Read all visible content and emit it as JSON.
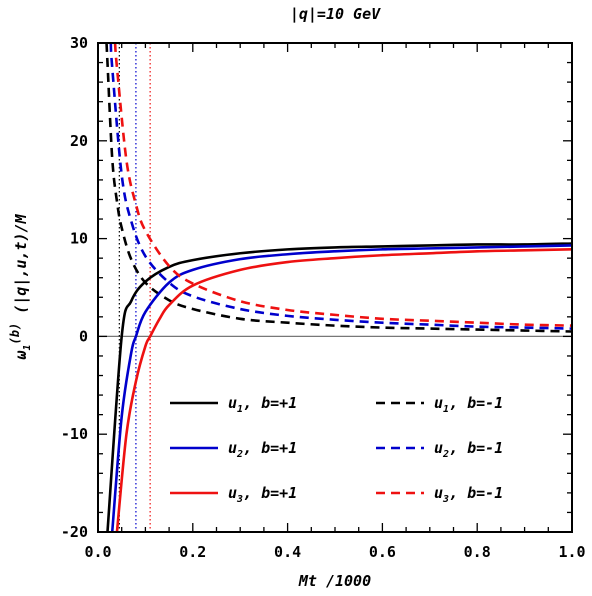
{
  "chart_data": {
    "type": "line",
    "title": "|q|=10 GeV",
    "xlabel": "Mt /1000",
    "ylabel": "ω1(b) (|q|,u,t)/M",
    "xlim": [
      0.0,
      1.0
    ],
    "ylim": [
      -20,
      30
    ],
    "x_ticks": [
      "0.0",
      "0.2",
      "0.4",
      "0.6",
      "0.8",
      "1.0"
    ],
    "y_ticks": [
      "-20",
      "-10",
      "0",
      "10",
      "20",
      "30"
    ],
    "grid": false,
    "legend_position": "lower-right",
    "zero_line": 0,
    "asymptotes": [
      {
        "x": 0.045,
        "color": "#000000"
      },
      {
        "x": 0.08,
        "color": "#0000cc"
      },
      {
        "x": 0.11,
        "color": "#ee1111"
      }
    ],
    "series": [
      {
        "name": "u1, b=+1",
        "color": "#000000",
        "dash": "solid",
        "x": [
          0.02,
          0.05,
          0.07,
          0.1,
          0.15,
          0.2,
          0.3,
          0.4,
          0.5,
          0.6,
          0.7,
          0.8,
          0.9,
          1.0
        ],
        "y": [
          -20.0,
          0.0,
          3.6,
          5.6,
          7.1,
          7.8,
          8.5,
          8.9,
          9.1,
          9.2,
          9.3,
          9.4,
          9.4,
          9.5
        ]
      },
      {
        "name": "u1, b=-1",
        "color": "#000000",
        "dash": "dashed",
        "x": [
          0.018,
          0.02,
          0.03,
          0.04,
          0.05,
          0.07,
          0.1,
          0.15,
          0.2,
          0.3,
          0.4,
          0.5,
          0.6,
          0.7,
          0.8,
          0.9,
          1.0
        ],
        "y": [
          30.0,
          28.0,
          18.2,
          13.8,
          11.1,
          7.9,
          5.5,
          3.7,
          2.8,
          1.8,
          1.4,
          1.1,
          0.9,
          0.8,
          0.7,
          0.6,
          0.5
        ]
      },
      {
        "name": "u2, b=+1",
        "color": "#0000cc",
        "dash": "solid",
        "x": [
          0.03,
          0.05,
          0.07,
          0.08,
          0.1,
          0.15,
          0.2,
          0.3,
          0.4,
          0.5,
          0.6,
          0.7,
          0.8,
          0.9,
          1.0
        ],
        "y": [
          -20.0,
          -8.2,
          -1.7,
          0.0,
          2.5,
          5.5,
          6.8,
          7.9,
          8.4,
          8.7,
          8.9,
          9.0,
          9.1,
          9.2,
          9.3
        ]
      },
      {
        "name": "u2, b=-1",
        "color": "#0000cc",
        "dash": "dashed",
        "x": [
          0.027,
          0.03,
          0.05,
          0.07,
          0.1,
          0.15,
          0.2,
          0.3,
          0.4,
          0.5,
          0.6,
          0.7,
          0.8,
          0.9,
          1.0
        ],
        "y": [
          30.0,
          27.5,
          16.5,
          11.8,
          8.2,
          5.5,
          4.1,
          2.8,
          2.1,
          1.7,
          1.4,
          1.2,
          1.0,
          0.9,
          0.8
        ]
      },
      {
        "name": "u3, b=+1",
        "color": "#ee1111",
        "dash": "solid",
        "x": [
          0.04,
          0.06,
          0.08,
          0.1,
          0.11,
          0.13,
          0.15,
          0.2,
          0.3,
          0.4,
          0.5,
          0.6,
          0.7,
          0.8,
          0.9,
          1.0
        ],
        "y": [
          -20.0,
          -10.0,
          -4.6,
          -1.0,
          0.0,
          1.8,
          3.2,
          5.2,
          6.8,
          7.6,
          8.0,
          8.3,
          8.5,
          8.7,
          8.8,
          8.9
        ]
      },
      {
        "name": "u3, b=-1",
        "color": "#ee1111",
        "dash": "dashed",
        "x": [
          0.036,
          0.04,
          0.06,
          0.08,
          0.1,
          0.15,
          0.2,
          0.3,
          0.4,
          0.5,
          0.6,
          0.7,
          0.8,
          0.9,
          1.0
        ],
        "y": [
          30.0,
          27.5,
          18.0,
          13.5,
          10.8,
          7.2,
          5.4,
          3.6,
          2.7,
          2.2,
          1.8,
          1.6,
          1.4,
          1.2,
          1.1
        ]
      }
    ],
    "legend": [
      {
        "series": 0,
        "var": "u",
        "sub": "1",
        "rest": ",  b=+1"
      },
      {
        "series": 1,
        "var": "u",
        "sub": "1",
        "rest": ",  b=-1"
      },
      {
        "series": 2,
        "var": "u",
        "sub": "2",
        "rest": ",  b=+1"
      },
      {
        "series": 3,
        "var": "u",
        "sub": "2",
        "rest": ",  b=-1"
      },
      {
        "series": 4,
        "var": "u",
        "sub": "3",
        "rest": ",  b=+1"
      },
      {
        "series": 5,
        "var": "u",
        "sub": "3",
        "rest": ",  b=-1"
      }
    ],
    "ylabel_parts": {
      "main": "ω",
      "sub": "1",
      "sup": "(b)",
      "rest": " (|q|,u,t)/M"
    }
  }
}
